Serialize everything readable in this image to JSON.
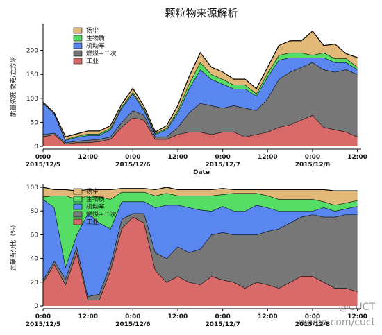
{
  "chart_data": [
    {
      "type": "stacked_area",
      "title": "颗粒物来源解析",
      "x_label": "Date",
      "y_label": "质量浓度 微克/立方米",
      "x": [
        0,
        3,
        6,
        9,
        12,
        15,
        18,
        21,
        24,
        27,
        30,
        33,
        36,
        39,
        42,
        45,
        48,
        51,
        54,
        57,
        60,
        63,
        66,
        69,
        72,
        75,
        78,
        81,
        84
      ],
      "xlim": [
        0,
        85
      ],
      "xticks": [
        {
          "value": 0,
          "label": "0:00"
        },
        {
          "value": 12,
          "label": "12:00"
        },
        {
          "value": 24,
          "label": "0:00"
        },
        {
          "value": 36,
          "label": "12:00"
        },
        {
          "value": 48,
          "label": "0:00"
        },
        {
          "value": 60,
          "label": "12:00"
        },
        {
          "value": 72,
          "label": "0:00"
        },
        {
          "value": 84,
          "label": "12:00"
        }
      ],
      "xtick_dates": [
        {
          "value": 0,
          "label": "2015/12/5"
        },
        {
          "value": 24,
          "label": "2015/12/6"
        },
        {
          "value": 48,
          "label": "2015/12/7"
        },
        {
          "value": 72,
          "label": "2015/12/8"
        }
      ],
      "ylim": [
        0,
        250
      ],
      "yticks": [
        0,
        50,
        100,
        150,
        200
      ],
      "legend": "upper left",
      "series": [
        {
          "name": "工业",
          "color": "#d96a6a",
          "values": [
            20,
            25,
            5,
            8,
            8,
            10,
            15,
            40,
            60,
            55,
            15,
            15,
            25,
            30,
            30,
            25,
            30,
            30,
            20,
            25,
            30,
            40,
            45,
            55,
            65,
            40,
            35,
            30,
            20
          ]
        },
        {
          "name": "燃煤+二次",
          "color": "#777777",
          "values": [
            5,
            3,
            3,
            3,
            5,
            5,
            5,
            10,
            15,
            10,
            5,
            5,
            15,
            40,
            60,
            60,
            50,
            55,
            60,
            50,
            70,
            100,
            110,
            110,
            110,
            120,
            120,
            130,
            130
          ]
        },
        {
          "name": "机动车",
          "color": "#5a86f0",
          "values": [
            65,
            40,
            5,
            8,
            10,
            8,
            15,
            30,
            35,
            10,
            5,
            15,
            30,
            50,
            70,
            55,
            50,
            35,
            40,
            30,
            45,
            40,
            30,
            20,
            10,
            25,
            20,
            15,
            10
          ]
        },
        {
          "name": "生物质",
          "color": "#55dd66",
          "values": [
            0,
            0,
            2,
            2,
            3,
            3,
            3,
            3,
            3,
            3,
            2,
            3,
            5,
            10,
            15,
            10,
            10,
            8,
            8,
            5,
            8,
            10,
            10,
            10,
            5,
            10,
            8,
            8,
            5
          ]
        },
        {
          "name": "扬尘",
          "color": "#e2b878",
          "values": [
            2,
            2,
            5,
            5,
            6,
            6,
            5,
            5,
            8,
            5,
            3,
            5,
            10,
            15,
            20,
            15,
            15,
            12,
            12,
            10,
            12,
            20,
            25,
            25,
            50,
            15,
            30,
            10,
            20
          ]
        }
      ]
    },
    {
      "type": "stacked_area",
      "y_label": "贡献百分比（%）",
      "x": [
        0,
        3,
        6,
        9,
        12,
        15,
        18,
        21,
        24,
        27,
        30,
        33,
        36,
        39,
        42,
        45,
        48,
        51,
        54,
        57,
        60,
        63,
        66,
        69,
        72,
        75,
        78,
        81,
        84
      ],
      "xlim": [
        0,
        85
      ],
      "xticks": [
        {
          "value": 0,
          "label": "0:00"
        },
        {
          "value": 12,
          "label": "12:00"
        },
        {
          "value": 24,
          "label": "0:00"
        },
        {
          "value": 36,
          "label": "12:00"
        },
        {
          "value": 48,
          "label": "0:00"
        },
        {
          "value": 60,
          "label": "12:00"
        },
        {
          "value": 72,
          "label": "0:00"
        },
        {
          "value": 84,
          "label": "12:00"
        }
      ],
      "xtick_dates": [
        {
          "value": 0,
          "label": "2015/12/5"
        },
        {
          "value": 24,
          "label": "2015/12/6"
        },
        {
          "value": 48,
          "label": "2015/12/7"
        },
        {
          "value": 72,
          "label": "2015/12/8"
        }
      ],
      "ylim": [
        0,
        100
      ],
      "yticks": [
        0,
        20,
        40,
        60,
        80,
        100
      ],
      "legend": "upper left",
      "series": [
        {
          "name": "工业",
          "color": "#d96a6a",
          "values": [
            20,
            35,
            18,
            45,
            5,
            5,
            30,
            65,
            75,
            70,
            30,
            20,
            25,
            20,
            18,
            25,
            22,
            20,
            15,
            20,
            18,
            15,
            20,
            25,
            25,
            20,
            15,
            15,
            12
          ]
        },
        {
          "name": "燃煤+二次",
          "color": "#777777",
          "values": [
            2,
            3,
            5,
            5,
            3,
            5,
            5,
            8,
            3,
            8,
            15,
            20,
            25,
            25,
            30,
            35,
            40,
            40,
            45,
            40,
            45,
            50,
            50,
            50,
            52,
            55,
            60,
            62,
            65
          ]
        },
        {
          "name": "机动车",
          "color": "#5a86f0",
          "values": [
            68,
            45,
            10,
            10,
            70,
            60,
            30,
            15,
            10,
            10,
            38,
            45,
            35,
            38,
            33,
            20,
            22,
            20,
            20,
            25,
            20,
            15,
            10,
            5,
            3,
            8,
            5,
            5,
            7
          ]
        },
        {
          "name": "生物质",
          "color": "#55dd66",
          "values": [
            2,
            10,
            60,
            30,
            15,
            22,
            25,
            8,
            8,
            8,
            10,
            10,
            8,
            10,
            12,
            13,
            10,
            15,
            15,
            10,
            10,
            10,
            10,
            10,
            10,
            5,
            5,
            5,
            5
          ]
        },
        {
          "name": "扬尘",
          "color": "#e2b878",
          "values": [
            8,
            5,
            5,
            7,
            5,
            6,
            8,
            3,
            3,
            3,
            5,
            5,
            5,
            5,
            5,
            5,
            5,
            3,
            3,
            3,
            5,
            8,
            8,
            8,
            8,
            10,
            12,
            10,
            8
          ]
        }
      ]
    }
  ],
  "watermark": [
    "@CUCT",
    "weibo.com/cuct"
  ]
}
